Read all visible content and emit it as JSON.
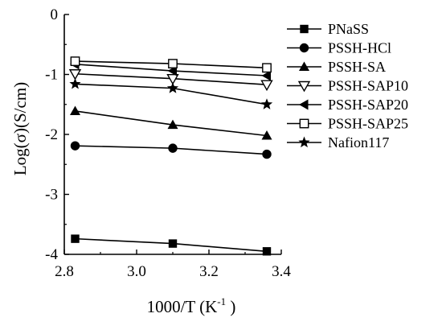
{
  "chart_data": {
    "type": "line",
    "title": "",
    "xlabel": "1000/T (K",
    "xlabel_superscript": "-1",
    "xlabel_suffix": " )",
    "ylabel": "Log(σ)(S/cm)",
    "xlim": [
      2.8,
      3.4
    ],
    "ylim": [
      -4,
      0
    ],
    "x_ticks": [
      2.8,
      3.0,
      3.2,
      3.4
    ],
    "x_tick_labels": [
      "2.8",
      "3.0",
      "3.2",
      "3.4"
    ],
    "y_ticks": [
      0,
      -1,
      -2,
      -3,
      -4
    ],
    "y_tick_labels": [
      "0",
      "-1",
      "-2",
      "-3",
      "-4"
    ],
    "grid": false,
    "legend_position": "right",
    "x": [
      2.83,
      3.1,
      3.36
    ],
    "series": [
      {
        "name": "PNaSS",
        "marker": "square-filled",
        "values": [
          -3.74,
          -3.82,
          -3.95
        ]
      },
      {
        "name": "PSSH-HCl",
        "marker": "circle-filled",
        "values": [
          -2.19,
          -2.23,
          -2.33
        ]
      },
      {
        "name": "PSSH-SA",
        "marker": "triangle-up-filled",
        "values": [
          -1.61,
          -1.84,
          -2.02
        ]
      },
      {
        "name": "PSSH-SAP10",
        "marker": "triangle-down-open",
        "values": [
          -0.99,
          -1.07,
          -1.17
        ]
      },
      {
        "name": "PSSH-SAP20",
        "marker": "triangle-left-filled",
        "values": [
          -0.83,
          -0.94,
          -1.02
        ]
      },
      {
        "name": "PSSH-SAP25",
        "marker": "square-open",
        "values": [
          -0.78,
          -0.82,
          -0.89
        ]
      },
      {
        "name": "Nafion117",
        "marker": "star-filled",
        "values": [
          -1.16,
          -1.23,
          -1.5
        ]
      }
    ]
  }
}
